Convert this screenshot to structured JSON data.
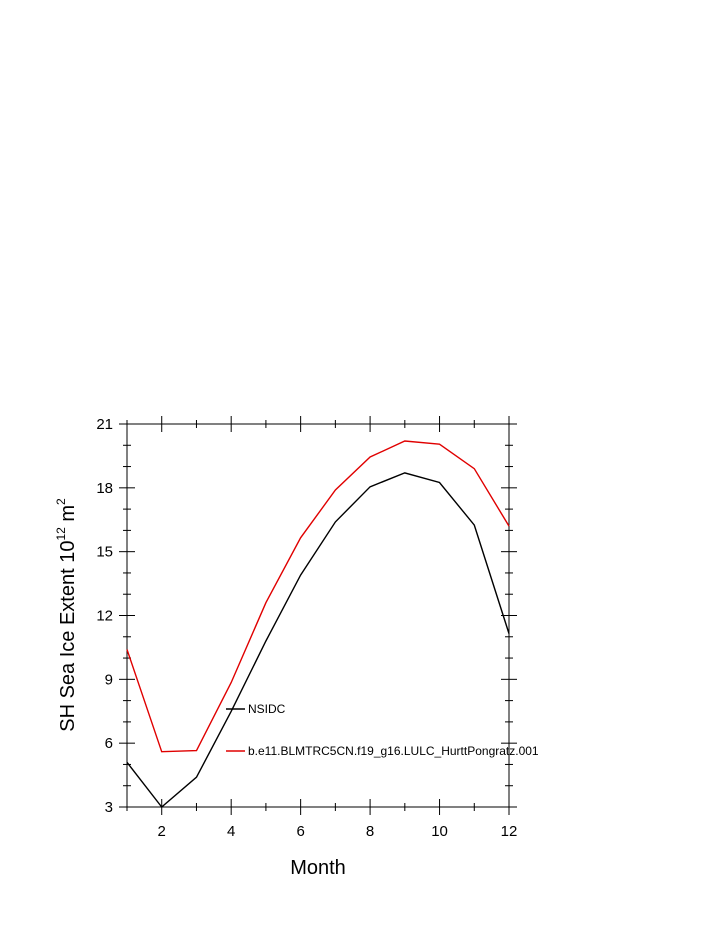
{
  "chart_data": {
    "type": "line",
    "title": "",
    "xlabel": "Month",
    "ylabel_prefix": "SH Sea Ice Extent 10",
    "ylabel_exp1": "12",
    "ylabel_unit": " m",
    "ylabel_exp2": "2",
    "xlim": [
      1,
      12
    ],
    "ylim": [
      3,
      21
    ],
    "xticks": [
      2,
      4,
      6,
      8,
      10,
      12
    ],
    "yticks": [
      3,
      6,
      9,
      12,
      15,
      18,
      21
    ],
    "x": [
      1,
      2,
      3,
      4,
      5,
      6,
      7,
      8,
      9,
      10,
      11,
      12
    ],
    "series": [
      {
        "name": "NSIDC",
        "color": "#000000",
        "values": [
          5.1,
          3.0,
          4.4,
          7.5,
          10.8,
          13.9,
          16.4,
          18.05,
          18.7,
          18.25,
          16.25,
          11.15
        ]
      },
      {
        "name": "b.e11.BLMTRC5CN.f19_g16.LULC_HurttPongratz.001",
        "color": "#e00000",
        "values": [
          10.4,
          5.6,
          5.65,
          8.85,
          12.6,
          15.65,
          17.9,
          19.45,
          20.2,
          20.05,
          18.9,
          16.2
        ]
      }
    ],
    "legend_position": "inside-lower-center",
    "grid": false
  }
}
